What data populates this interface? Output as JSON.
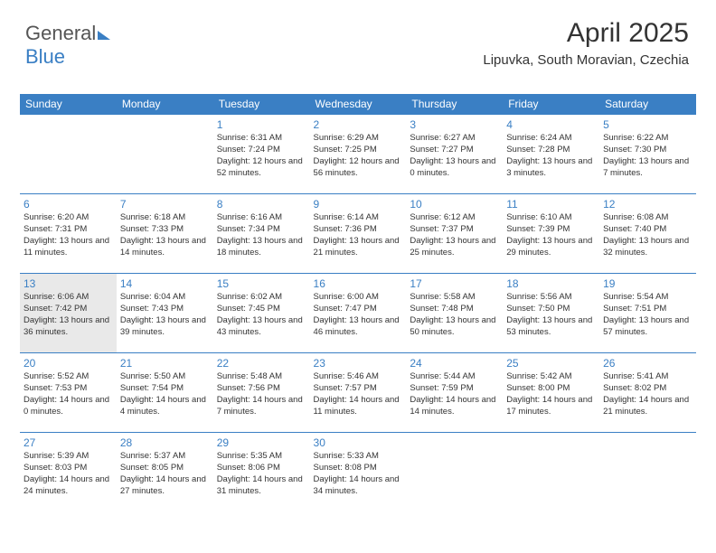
{
  "logo": {
    "part1": "General",
    "part2": "Blue"
  },
  "title": "April 2025",
  "location": "Lipuvka, South Moravian, Czechia",
  "colors": {
    "accent": "#3a7fc4",
    "header_text": "#ffffff",
    "body_text": "#333333",
    "today_bg": "#e9e9e9"
  },
  "day_headers": [
    "Sunday",
    "Monday",
    "Tuesday",
    "Wednesday",
    "Thursday",
    "Friday",
    "Saturday"
  ],
  "weeks": [
    [
      null,
      null,
      {
        "n": "1",
        "sr": "6:31 AM",
        "ss": "7:24 PM",
        "dl": "12 hours and 52 minutes."
      },
      {
        "n": "2",
        "sr": "6:29 AM",
        "ss": "7:25 PM",
        "dl": "12 hours and 56 minutes."
      },
      {
        "n": "3",
        "sr": "6:27 AM",
        "ss": "7:27 PM",
        "dl": "13 hours and 0 minutes."
      },
      {
        "n": "4",
        "sr": "6:24 AM",
        "ss": "7:28 PM",
        "dl": "13 hours and 3 minutes."
      },
      {
        "n": "5",
        "sr": "6:22 AM",
        "ss": "7:30 PM",
        "dl": "13 hours and 7 minutes."
      }
    ],
    [
      {
        "n": "6",
        "sr": "6:20 AM",
        "ss": "7:31 PM",
        "dl": "13 hours and 11 minutes."
      },
      {
        "n": "7",
        "sr": "6:18 AM",
        "ss": "7:33 PM",
        "dl": "13 hours and 14 minutes."
      },
      {
        "n": "8",
        "sr": "6:16 AM",
        "ss": "7:34 PM",
        "dl": "13 hours and 18 minutes."
      },
      {
        "n": "9",
        "sr": "6:14 AM",
        "ss": "7:36 PM",
        "dl": "13 hours and 21 minutes."
      },
      {
        "n": "10",
        "sr": "6:12 AM",
        "ss": "7:37 PM",
        "dl": "13 hours and 25 minutes."
      },
      {
        "n": "11",
        "sr": "6:10 AM",
        "ss": "7:39 PM",
        "dl": "13 hours and 29 minutes."
      },
      {
        "n": "12",
        "sr": "6:08 AM",
        "ss": "7:40 PM",
        "dl": "13 hours and 32 minutes."
      }
    ],
    [
      {
        "n": "13",
        "sr": "6:06 AM",
        "ss": "7:42 PM",
        "dl": "13 hours and 36 minutes.",
        "today": true
      },
      {
        "n": "14",
        "sr": "6:04 AM",
        "ss": "7:43 PM",
        "dl": "13 hours and 39 minutes."
      },
      {
        "n": "15",
        "sr": "6:02 AM",
        "ss": "7:45 PM",
        "dl": "13 hours and 43 minutes."
      },
      {
        "n": "16",
        "sr": "6:00 AM",
        "ss": "7:47 PM",
        "dl": "13 hours and 46 minutes."
      },
      {
        "n": "17",
        "sr": "5:58 AM",
        "ss": "7:48 PM",
        "dl": "13 hours and 50 minutes."
      },
      {
        "n": "18",
        "sr": "5:56 AM",
        "ss": "7:50 PM",
        "dl": "13 hours and 53 minutes."
      },
      {
        "n": "19",
        "sr": "5:54 AM",
        "ss": "7:51 PM",
        "dl": "13 hours and 57 minutes."
      }
    ],
    [
      {
        "n": "20",
        "sr": "5:52 AM",
        "ss": "7:53 PM",
        "dl": "14 hours and 0 minutes."
      },
      {
        "n": "21",
        "sr": "5:50 AM",
        "ss": "7:54 PM",
        "dl": "14 hours and 4 minutes."
      },
      {
        "n": "22",
        "sr": "5:48 AM",
        "ss": "7:56 PM",
        "dl": "14 hours and 7 minutes."
      },
      {
        "n": "23",
        "sr": "5:46 AM",
        "ss": "7:57 PM",
        "dl": "14 hours and 11 minutes."
      },
      {
        "n": "24",
        "sr": "5:44 AM",
        "ss": "7:59 PM",
        "dl": "14 hours and 14 minutes."
      },
      {
        "n": "25",
        "sr": "5:42 AM",
        "ss": "8:00 PM",
        "dl": "14 hours and 17 minutes."
      },
      {
        "n": "26",
        "sr": "5:41 AM",
        "ss": "8:02 PM",
        "dl": "14 hours and 21 minutes."
      }
    ],
    [
      {
        "n": "27",
        "sr": "5:39 AM",
        "ss": "8:03 PM",
        "dl": "14 hours and 24 minutes."
      },
      {
        "n": "28",
        "sr": "5:37 AM",
        "ss": "8:05 PM",
        "dl": "14 hours and 27 minutes."
      },
      {
        "n": "29",
        "sr": "5:35 AM",
        "ss": "8:06 PM",
        "dl": "14 hours and 31 minutes."
      },
      {
        "n": "30",
        "sr": "5:33 AM",
        "ss": "8:08 PM",
        "dl": "14 hours and 34 minutes."
      },
      null,
      null,
      null
    ]
  ],
  "labels": {
    "sunrise": "Sunrise: ",
    "sunset": "Sunset: ",
    "daylight": "Daylight: "
  }
}
